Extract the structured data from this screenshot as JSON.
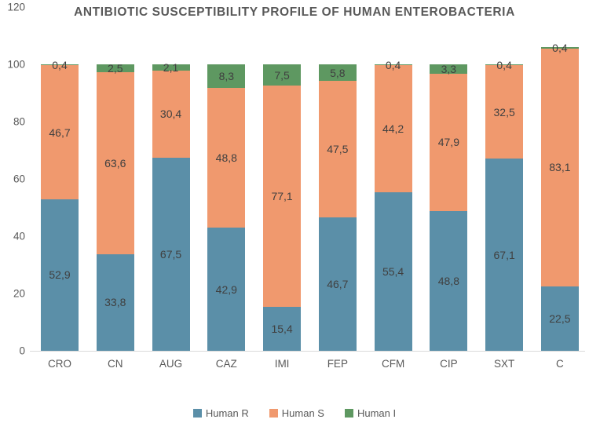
{
  "chart_data": {
    "type": "bar",
    "stacked": true,
    "title": "ANTIBIOTIC SUSCEPTIBILITY PROFILE OF HUMAN ENTEROBACTERIA",
    "categories": [
      "CRO",
      "CN",
      "AUG",
      "CAZ",
      "IMI",
      "FEP",
      "CFM",
      "CIP",
      "SXT",
      "C"
    ],
    "series": [
      {
        "name": "Human R",
        "color": "#5b8fa8",
        "values": [
          52.9,
          33.8,
          67.5,
          42.9,
          15.4,
          46.7,
          55.4,
          48.8,
          67.1,
          22.5
        ]
      },
      {
        "name": "Human S",
        "color": "#f0996e",
        "values": [
          46.7,
          63.6,
          30.4,
          48.8,
          77.1,
          47.5,
          44.2,
          47.9,
          32.5,
          83.1
        ]
      },
      {
        "name": "Human I",
        "color": "#5e9861",
        "values": [
          0.4,
          2.5,
          2.1,
          8.3,
          7.5,
          5.8,
          0.4,
          3.3,
          0.4,
          0.4
        ]
      }
    ],
    "ylim": [
      0,
      120
    ],
    "yticks": [
      0,
      20,
      40,
      60,
      80,
      100,
      120
    ],
    "grid": false,
    "legend_position": "bottom",
    "data_labels": true,
    "decimal_separator": ",",
    "label_color": "#404040",
    "axis_text_color": "#595959",
    "axis_line_color": "#d9d9d9"
  }
}
